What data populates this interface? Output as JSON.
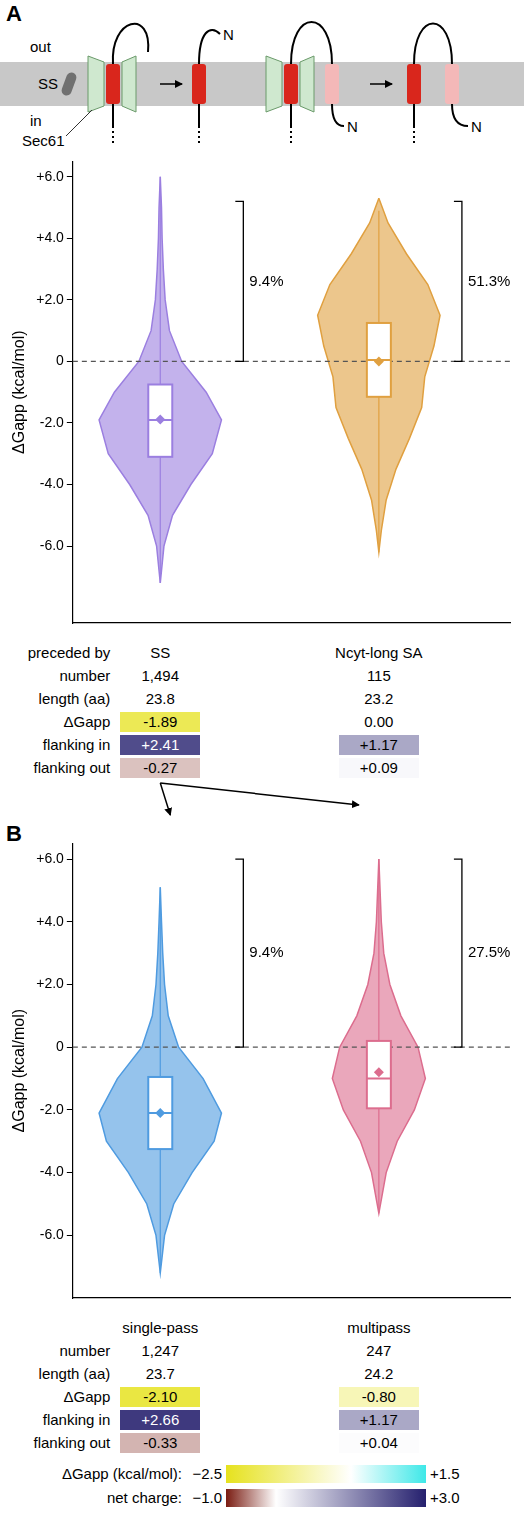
{
  "schematic": {
    "labels": {
      "outside": "out",
      "inside": "in",
      "signal_sequence": "SS",
      "translocon": "Sec61",
      "n_terminus": "N"
    }
  },
  "chart_data": [
    {
      "panel": "A",
      "type": "violin",
      "ylabel": "ΔGapp (kcal/mol)",
      "ylim": [
        -8.5,
        6.5
      ],
      "yticks": [
        {
          "value": -6,
          "label": "-6.0"
        },
        {
          "value": -4,
          "label": "-4.0"
        },
        {
          "value": -2,
          "label": "-2.0"
        },
        0,
        {
          "value": 2,
          "label": "+2.0"
        },
        {
          "value": 4,
          "label": "+4.0"
        },
        {
          "value": 6,
          "label": "+6.0"
        }
      ],
      "grid": false,
      "tick_labels": "y",
      "categories": [
        "SS",
        "Ncyt-long SA"
      ],
      "series": [
        {
          "color": "#9b7fe0",
          "density": {
            "y": [
              6.0,
              5.0,
              4.0,
              3.0,
              2.0,
              1.0,
              0.0,
              -1.0,
              -1.9,
              -3.0,
              -4.0,
              -5.0,
              -6.0,
              -7.2
            ],
            "width": [
              0,
              0.02,
              0.03,
              0.05,
              0.08,
              0.15,
              0.35,
              0.75,
              1.0,
              0.85,
              0.5,
              0.2,
              0.06,
              0
            ]
          },
          "box": {
            "min": -7.2,
            "q1": -3.1,
            "median": -1.9,
            "q3": -0.75,
            "max": 6.0,
            "mean": -1.89
          }
        },
        {
          "color": "#e0a040",
          "density": {
            "y": [
              5.3,
              4.5,
              3.5,
              2.5,
              1.5,
              0.5,
              -0.5,
              -1.5,
              -2.5,
              -3.5,
              -4.5,
              -5.5,
              -6.2
            ],
            "width": [
              0,
              0.15,
              0.45,
              0.8,
              1.0,
              0.9,
              0.75,
              0.7,
              0.5,
              0.28,
              0.12,
              0.04,
              0
            ]
          },
          "box": {
            "min": -6.2,
            "q1": -1.15,
            "median": 0.05,
            "q3": 1.25,
            "max": 4.9,
            "mean": 0.0
          }
        }
      ],
      "annotations": [
        {
          "type": "hline",
          "y": 0,
          "line_style": "dashed"
        },
        {
          "type": "bracket",
          "category": 0,
          "y": [
            0,
            5.2
          ],
          "label": "9.4%"
        },
        {
          "type": "bracket",
          "category": 1,
          "y": [
            0,
            5.2
          ],
          "label": "51.3%"
        }
      ]
    },
    {
      "panel": "B",
      "type": "violin",
      "ylabel": "ΔGapp (kcal/mol)",
      "ylim": [
        -8.0,
        6.5
      ],
      "yticks": [
        {
          "value": -6,
          "label": "-6.0"
        },
        {
          "value": -4,
          "label": "-4.0"
        },
        {
          "value": -2,
          "label": "-2.0"
        },
        0,
        {
          "value": 2,
          "label": "+2.0"
        },
        {
          "value": 4,
          "label": "+4.0"
        },
        {
          "value": 6,
          "label": "+6.0"
        }
      ],
      "grid": false,
      "tick_labels": "y",
      "categories": [
        "single-pass",
        "multipass"
      ],
      "series": [
        {
          "color": "#4f9be0",
          "density": {
            "y": [
              5.1,
              4.0,
              3.0,
              2.0,
              1.0,
              0.0,
              -1.0,
              -2.1,
              -3.0,
              -4.0,
              -5.0,
              -6.0,
              -7.2
            ],
            "width": [
              0,
              0.02,
              0.04,
              0.07,
              0.13,
              0.3,
              0.7,
              1.0,
              0.88,
              0.52,
              0.22,
              0.07,
              0
            ]
          },
          "box": {
            "min": -7.2,
            "q1": -3.25,
            "median": -2.1,
            "q3": -0.95,
            "max": 5.1,
            "mean": -2.1
          }
        },
        {
          "color": "#dc6d8e",
          "density": {
            "y": [
              6.0,
              5.0,
              4.0,
              3.0,
              2.0,
              1.0,
              0.0,
              -1.0,
              -2.0,
              -3.0,
              -4.0,
              -5.3
            ],
            "width": [
              0,
              0.02,
              0.04,
              0.08,
              0.18,
              0.36,
              0.64,
              0.76,
              0.58,
              0.3,
              0.12,
              0
            ]
          },
          "box": {
            "min": -5.3,
            "q1": -1.95,
            "median": -1.0,
            "q3": 0.2,
            "max": 6.0,
            "mean": -0.8
          }
        }
      ],
      "annotations": [
        {
          "type": "hline",
          "y": 0,
          "line_style": "dashed"
        },
        {
          "type": "bracket",
          "category": 0,
          "y": [
            0,
            6.0
          ],
          "label": "9.4%"
        },
        {
          "type": "bracket",
          "category": 1,
          "y": [
            0,
            6.0
          ],
          "label": "27.5%"
        }
      ]
    }
  ],
  "tables": [
    {
      "header_label": "preceded by",
      "rows": [
        {
          "label": "number",
          "cells": [
            "1,494",
            "115"
          ]
        },
        {
          "label": "length (aa)",
          "cells": [
            "23.8",
            "23.2"
          ]
        },
        {
          "label": "ΔGapp",
          "colorbar": 0,
          "cells": [
            {
              "value": -1.89,
              "label": "-1.89"
            },
            {
              "value": 0,
              "label": "0.00"
            }
          ]
        },
        {
          "label": "flanking in",
          "colorbar": 1,
          "cells": [
            {
              "value": 2.41,
              "label": "+2.41"
            },
            {
              "value": 1.17,
              "label": "+1.17"
            }
          ]
        },
        {
          "label": "flanking out",
          "colorbar": 1,
          "cells": [
            {
              "value": -0.27,
              "label": "-0.27"
            },
            {
              "value": 0.09,
              "label": "+0.09"
            }
          ]
        }
      ]
    },
    {
      "rows": [
        {
          "label": "number",
          "cells": [
            "1,247",
            "247"
          ]
        },
        {
          "label": "length (aa)",
          "cells": [
            "23.7",
            "24.2"
          ]
        },
        {
          "label": "ΔGapp",
          "colorbar": 0,
          "cells": [
            {
              "value": -2.1,
              "label": "-2.10"
            },
            {
              "value": -0.8,
              "label": "-0.80"
            }
          ]
        },
        {
          "label": "flanking in",
          "colorbar": 1,
          "cells": [
            {
              "value": 2.66,
              "label": "+2.66"
            },
            {
              "value": 1.17,
              "label": "+1.17"
            }
          ]
        },
        {
          "label": "flanking out",
          "colorbar": 1,
          "cells": [
            {
              "value": -0.33,
              "label": "-0.33"
            },
            {
              "value": 0.04,
              "label": "+0.04"
            }
          ]
        }
      ]
    }
  ],
  "colorbars": [
    {
      "label": "ΔGapp (kcal/mol):",
      "range": [
        -2.5,
        1.5
      ],
      "ticks": [
        {
          "value": -2.5,
          "label": "−2.5"
        },
        {
          "value": 1.5,
          "label": "+1.5"
        }
      ],
      "stops": [
        {
          "value": -2.5,
          "color": "#e6e21e"
        },
        {
          "value": 0,
          "color": "#ffffff"
        },
        {
          "value": 1.5,
          "color": "#3ee8e8"
        }
      ]
    },
    {
      "label": "net charge:",
      "range": [
        -1.0,
        3.0
      ],
      "ticks": [
        {
          "value": -1.0,
          "label": "−1.0"
        },
        {
          "value": 3.0,
          "label": "+3.0"
        }
      ],
      "stops": [
        {
          "value": -1.0,
          "color": "#7a1c12"
        },
        {
          "value": 0,
          "color": "#ffffff"
        },
        {
          "value": 3.0,
          "color": "#25206e"
        }
      ]
    }
  ]
}
